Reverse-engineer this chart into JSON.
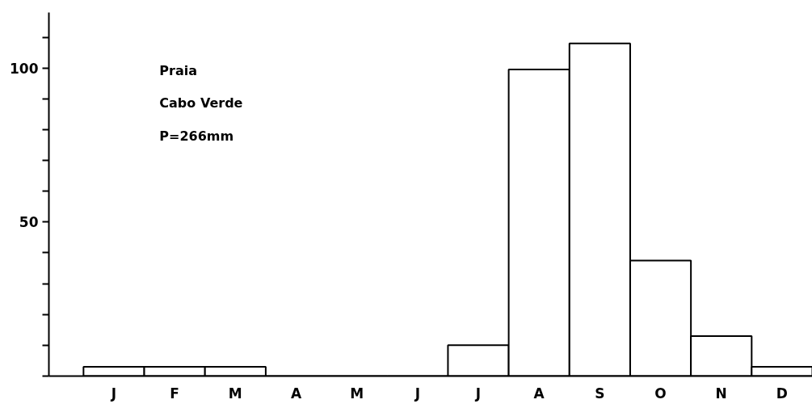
{
  "chart_data": {
    "type": "bar",
    "categories": [
      "J",
      "F",
      "M",
      "A",
      "M",
      "J",
      "J",
      "A",
      "S",
      "O",
      "N",
      "D"
    ],
    "values": [
      3,
      3,
      3,
      0,
      0,
      0,
      10,
      99.5,
      108,
      37.5,
      13,
      3
    ],
    "color": "#ffffff",
    "ylim": [
      0,
      118
    ],
    "yticks": [
      {
        "value": 0,
        "label": null
      },
      {
        "value": 10,
        "label": null
      },
      {
        "value": 20,
        "label": null
      },
      {
        "value": 30,
        "label": null
      },
      {
        "value": 40,
        "label": null
      },
      50,
      {
        "value": 60,
        "label": null
      },
      {
        "value": 70,
        "label": null
      },
      {
        "value": 80,
        "label": null
      },
      {
        "value": 90,
        "label": null
      },
      100,
      {
        "value": 110,
        "label": null
      }
    ],
    "annotations": [
      "Praia",
      "Cabo Verde",
      "P=266mm"
    ],
    "grid": false
  }
}
